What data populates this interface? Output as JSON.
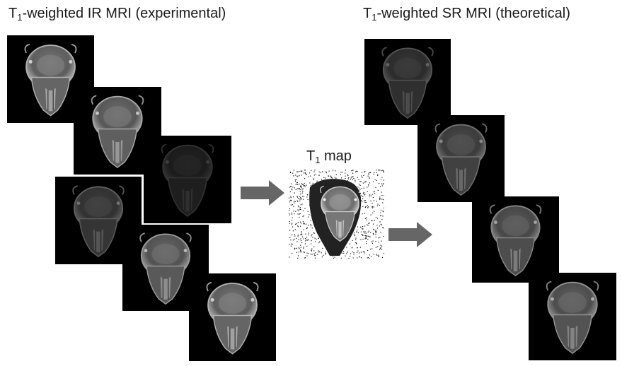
{
  "labels": {
    "experimental": {
      "prefix": "T",
      "sub": "1",
      "suffix": "-weighted IR MRI (experimental)"
    },
    "theoretical": {
      "prefix": "T",
      "sub": "1",
      "suffix": "-weighted SR MRI (theoretical)"
    },
    "map": {
      "prefix": "T",
      "sub": "1",
      "suffix": " map"
    }
  },
  "colors": {
    "background": "#ffffff",
    "arrow": "#666666",
    "text": "#1a1a1a"
  },
  "icons": {
    "arrow_left": "right-arrow-icon",
    "arrow_right": "right-arrow-icon"
  }
}
